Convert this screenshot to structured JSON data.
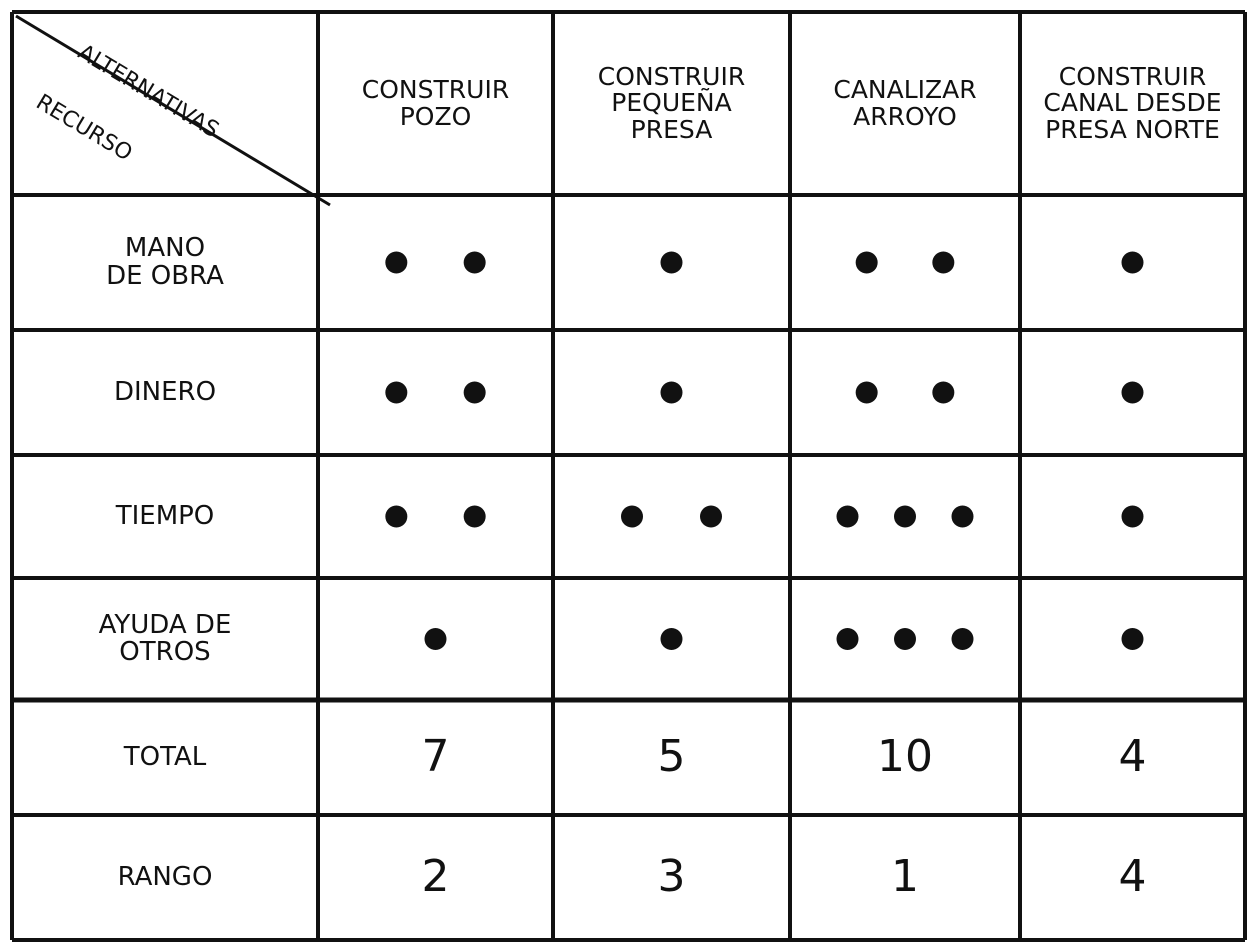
{
  "table": {
    "corner": {
      "top": "ALTERNATIVAS",
      "bottom": "RECURSO"
    },
    "columns": [
      "CONSTRUIR\nPOZO",
      "CONSTRUIR\nPEQUEÑA\nPRESA",
      "CANALIZAR\nARROYO",
      "CONSTRUIR\nCANAL DESDE\nPRESA NORTE"
    ],
    "rows": [
      {
        "label": "MANO\nDE OBRA",
        "dots": [
          2,
          1,
          2,
          1
        ]
      },
      {
        "label": "DINERO",
        "dots": [
          2,
          1,
          2,
          1
        ]
      },
      {
        "label": "TIEMPO",
        "dots": [
          2,
          2,
          3,
          1
        ]
      },
      {
        "label": "AYUDA DE\nOTROS",
        "dots": [
          1,
          1,
          3,
          1
        ]
      }
    ],
    "total": {
      "label": "TOTAL",
      "values": [
        7,
        5,
        10,
        4
      ]
    },
    "rank": {
      "label": "RANGO",
      "values": [
        2,
        3,
        1,
        4
      ]
    }
  }
}
